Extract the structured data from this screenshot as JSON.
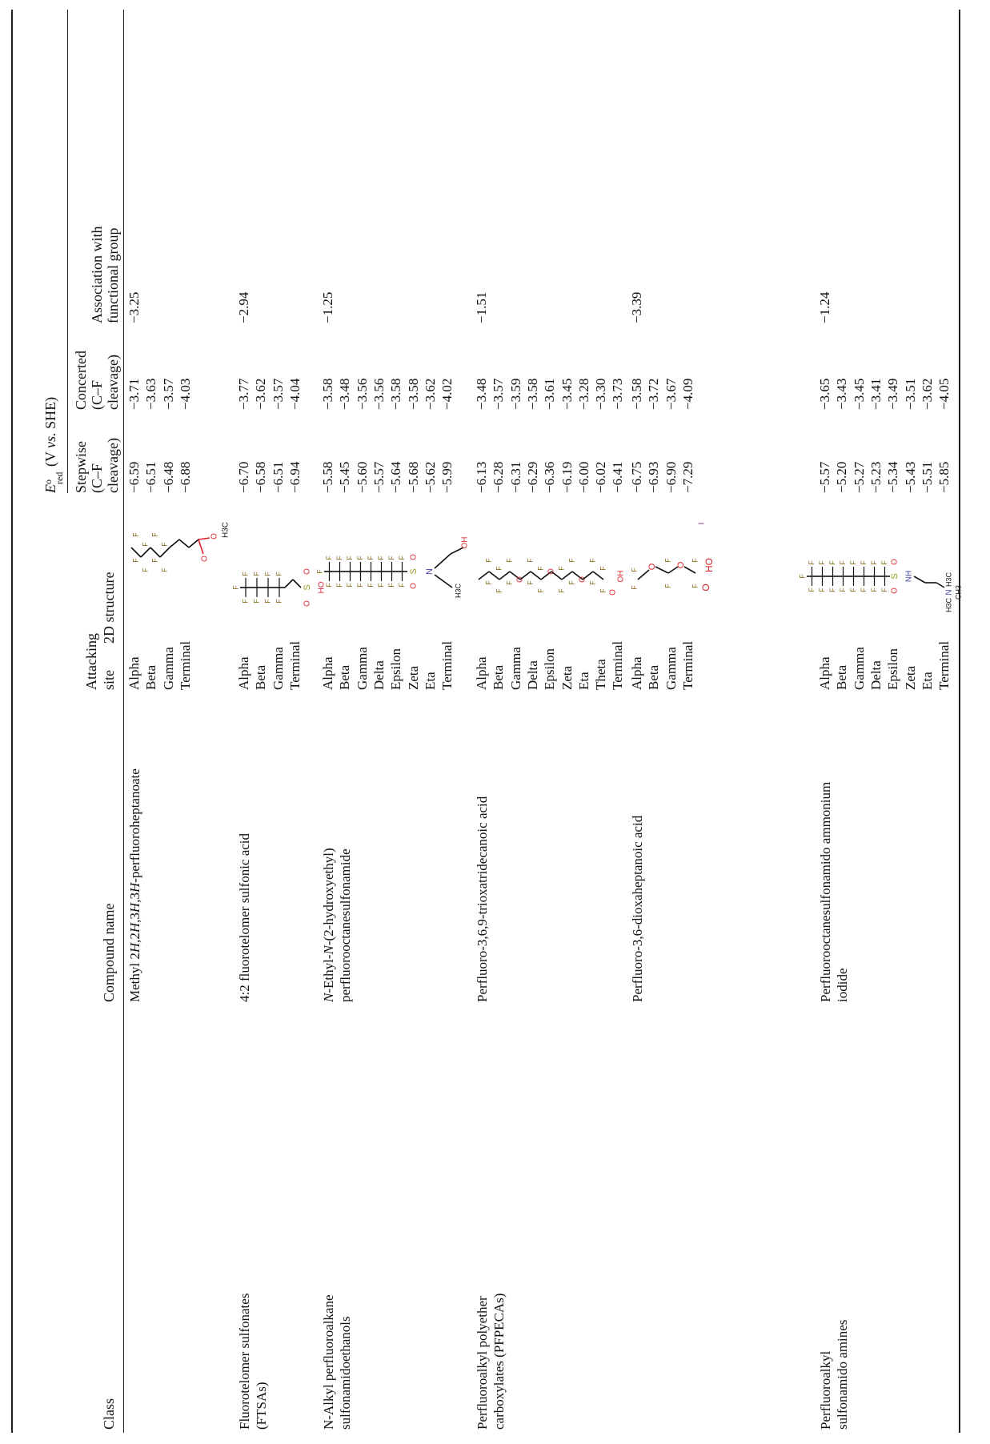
{
  "headers": {
    "class": "Class",
    "compound": "Compound name",
    "site_line1": "Attacking",
    "site_line2": "site",
    "structure": "2D structure",
    "ered_symbol": "E",
    "ered_sub": "red",
    "ered_sup": "o",
    "ered_units_pre": "(V ",
    "ered_units_vs": "vs.",
    "ered_units_post": " SHE)",
    "stepwise": [
      "Stepwise",
      "(C–F",
      "cleavage)"
    ],
    "concerted": [
      "Concerted",
      "(C–F",
      "cleavage)"
    ],
    "association": [
      "Association with",
      "functional group"
    ]
  },
  "colors": {
    "bond": "#111111",
    "fluorine": "#8a6d1e",
    "oxygen": "#e0202a",
    "sulfur": "#9a9a1a",
    "nitrogen": "#3a3aa8",
    "iodine": "#8a2a8a"
  },
  "rows": [
    {
      "class_lines": [],
      "compound_lines": [
        "Methyl 2H,2H,3H,3H-perfluoroheptanoate"
      ],
      "sites": [
        "Alpha",
        "Beta",
        "Gamma",
        "Terminal"
      ],
      "stepwise": [
        "−6.59",
        "−6.51",
        "−6.48",
        "−6.88"
      ],
      "concerted": [
        "−3.71",
        "−3.63",
        "−3.57",
        "−4.03"
      ],
      "association": "−3.25",
      "structure_icon": "methyl-perfluoroheptanoate-structure",
      "labels": [
        "F",
        "O",
        "H3C"
      ]
    },
    {
      "class_lines": [
        "Fluorotelomer sulfonates",
        "(FTSAs)"
      ],
      "compound_lines": [
        "4:2 fluorotelomer sulfonic acid"
      ],
      "sites": [
        "Alpha",
        "Beta",
        "Gamma",
        "Terminal"
      ],
      "stepwise": [
        "−6.70",
        "−6.58",
        "−6.51",
        "−6.94"
      ],
      "concerted": [
        "−3.77",
        "−3.62",
        "−3.57",
        "−4.04"
      ],
      "association": "−2.94",
      "structure_icon": "fluorotelomer-sulfonic-acid-structure",
      "labels": [
        "F",
        "O",
        "S",
        "HO"
      ]
    },
    {
      "class_lines": [
        "N-Alkyl perfluoroalkane",
        "sulfonamidoethanols"
      ],
      "compound_lines": [
        "N-Ethyl-N-(2-hydroxyethyl)",
        "perfluorooctanesulfonamide"
      ],
      "sites": [
        "Alpha",
        "Beta",
        "Gamma",
        "Delta",
        "Epsilon",
        "Zeta",
        "Eta",
        "Terminal"
      ],
      "stepwise": [
        "−5.58",
        "−5.45",
        "−5.60",
        "−5.57",
        "−5.64",
        "−5.68",
        "−5.62",
        "−5.99"
      ],
      "concerted": [
        "−3.58",
        "−3.48",
        "−3.56",
        "−3.56",
        "−3.58",
        "−3.58",
        "−3.62",
        "−4.02"
      ],
      "association": "−1.25",
      "structure_icon": "sulfonamidoethanol-structure",
      "labels": [
        "F",
        "O",
        "S",
        "N",
        "H3C",
        "OH"
      ]
    },
    {
      "class_lines": [
        "Perfluoroalkyl polyether",
        "carboxylates (PFPECAs)"
      ],
      "compound_lines": [
        "Perfluoro-3,6,9-trioxatridecanoic acid"
      ],
      "sites": [
        "Alpha",
        "Beta",
        "Gamma",
        "Delta",
        "Epsilon",
        "Zeta",
        "Eta",
        "Theta",
        "Terminal"
      ],
      "stepwise": [
        "−6.13",
        "−6.28",
        "−6.31",
        "−6.29",
        "−6.36",
        "−6.19",
        "−6.00",
        "−6.02",
        "−6.41"
      ],
      "concerted": [
        "−3.48",
        "−3.57",
        "−3.59",
        "−3.58",
        "−3.61",
        "−3.45",
        "−3.28",
        "−3.30",
        "−3.73"
      ],
      "association": "−1.51",
      "structure_icon": "trioxatridecanoic-acid-structure",
      "labels": [
        "F",
        "O",
        "OH"
      ]
    },
    {
      "class_lines": [],
      "compound_lines": [
        "Perfluoro-3,6-dioxaheptanoic acid"
      ],
      "sites": [
        "Alpha",
        "Beta",
        "Gamma",
        "Terminal"
      ],
      "stepwise": [
        "−6.75",
        "−6.93",
        "−6.90",
        "−7.29"
      ],
      "concerted": [
        "−3.58",
        "−3.72",
        "−3.67",
        "−4.09"
      ],
      "association": "−3.39",
      "structure_icon": "dioxaheptanoic-acid-structure",
      "labels": [
        "F",
        "O",
        "HO"
      ]
    },
    {
      "class_lines": [
        "Perfluoroalkyl",
        "sulfonamido amines"
      ],
      "compound_lines": [
        "Perfluorooctanesulfonamido ammonium",
        "iodide"
      ],
      "sites": [
        "Alpha",
        "Beta",
        "Gamma",
        "Delta",
        "Epsilon",
        "Zeta",
        "Eta",
        "Terminal"
      ],
      "stepwise": [
        "−5.57",
        "−5.20",
        "−5.27",
        "−5.23",
        "−5.34",
        "−5.43",
        "−5.51",
        "−5.85"
      ],
      "concerted": [
        "−3.65",
        "−3.43",
        "−3.45",
        "−3.41",
        "−3.49",
        "−3.51",
        "−3.62",
        "−4.05"
      ],
      "association": "−1.24",
      "structure_icon": "sulfonamido-ammonium-iodide-structure",
      "labels": [
        "F",
        "O",
        "S",
        "NH",
        "N",
        "H3C",
        "CH3",
        "I"
      ]
    }
  ]
}
